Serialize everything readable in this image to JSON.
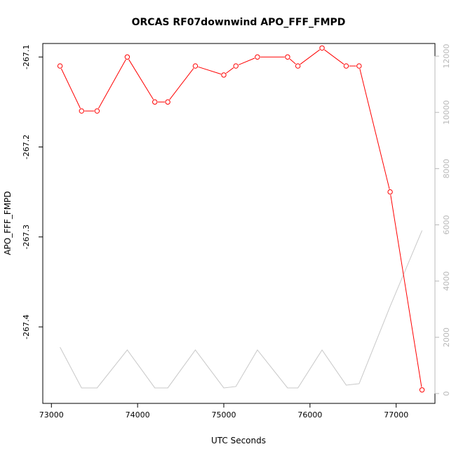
{
  "chart_data": {
    "type": "line",
    "title": "ORCAS RF07downwind APO_FFF_FMPD",
    "xlabel": "UTC Seconds",
    "ylabel": "APO_FFF_FMPD",
    "xlim": [
      72900,
      77450
    ],
    "ylim": [
      -267.485,
      -267.085
    ],
    "y2lim": [
      -350,
      12450
    ],
    "x_ticks": [
      73000,
      74000,
      75000,
      76000,
      77000
    ],
    "x_tick_labels": [
      "73000",
      "74000",
      "75000",
      "76000",
      "77000"
    ],
    "y_ticks": [
      -267.1,
      -267.2,
      -267.3,
      -267.4
    ],
    "y_tick_labels": [
      "-267.1",
      "-267.2",
      "-267.3",
      "-267.4"
    ],
    "y2_ticks": [
      0,
      2000,
      4000,
      6000,
      8000,
      10000,
      12000
    ],
    "y2_tick_labels": [
      "0",
      "2000",
      "4000",
      "6000",
      "8000",
      "10000",
      "12000"
    ],
    "series": [
      {
        "axis": "left",
        "color": "#ff0000",
        "marker": "open-circle",
        "x": [
          73100,
          73350,
          73530,
          73880,
          74200,
          74350,
          74670,
          75000,
          75140,
          75390,
          75740,
          75860,
          76140,
          76420,
          76570,
          76930,
          77300
        ],
        "y": [
          -267.11,
          -267.16,
          -267.16,
          -267.1,
          -267.15,
          -267.15,
          -267.11,
          -267.12,
          -267.11,
          -267.1,
          -267.1,
          -267.11,
          -267.09,
          -267.11,
          -267.11,
          -267.25,
          -267.47
        ]
      },
      {
        "axis": "right",
        "color": "#c8c8c8",
        "marker": "none",
        "x": [
          73100,
          73350,
          73530,
          73880,
          74200,
          74350,
          74670,
          75000,
          75140,
          75390,
          75740,
          75860,
          76140,
          76420,
          76570,
          76930,
          77300
        ],
        "y": [
          1650,
          200,
          200,
          1550,
          200,
          200,
          1550,
          200,
          250,
          1550,
          200,
          200,
          1550,
          300,
          350,
          3100,
          5800
        ]
      }
    ]
  }
}
